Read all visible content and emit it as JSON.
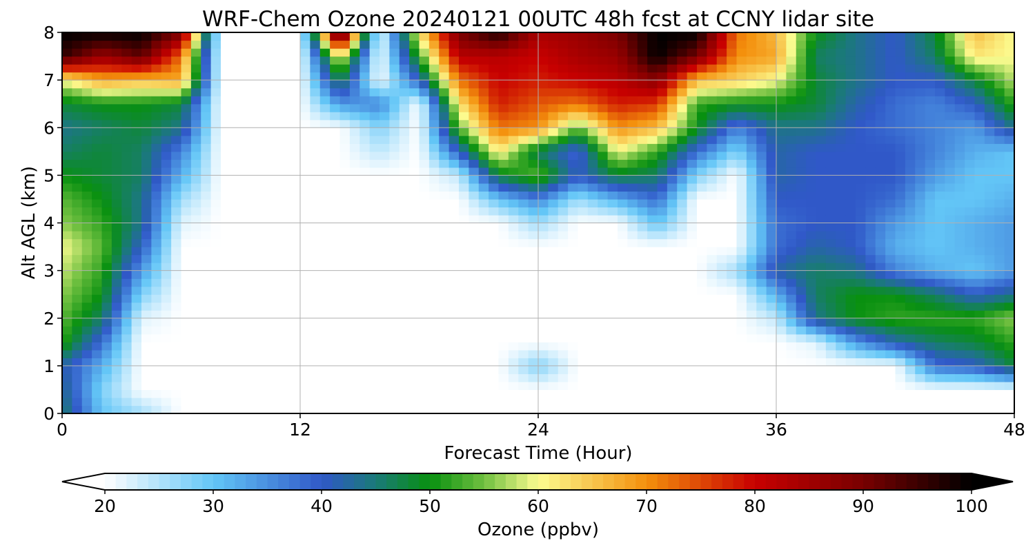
{
  "chart_data": {
    "type": "heatmap",
    "title": "WRF-Chem Ozone  20240121 00UTC 48h fcst at CCNY lidar site",
    "xlabel": "Forecast Time (Hour)",
    "ylabel": "Alt AGL (km)",
    "xlim": [
      0,
      48
    ],
    "ylim": [
      0,
      8
    ],
    "xticks": [
      0,
      12,
      24,
      36,
      48
    ],
    "yticks": [
      0,
      1,
      2,
      3,
      4,
      5,
      6,
      7,
      8
    ],
    "grid": true,
    "x_hours": [
      0,
      2,
      4,
      6,
      8,
      10,
      12,
      14,
      16,
      18,
      20,
      22,
      24,
      26,
      28,
      30,
      32,
      34,
      36,
      38,
      40,
      42,
      44,
      46,
      48
    ],
    "y_km": [
      0,
      0.5,
      1,
      1.5,
      2,
      2.5,
      3,
      3.5,
      4,
      4.5,
      5,
      5.5,
      6,
      6.5,
      7,
      7.5,
      8
    ],
    "z_ppbv": [
      [
        46,
        30,
        26,
        20,
        20,
        20,
        20,
        20,
        20,
        20,
        20,
        20,
        20,
        20,
        20,
        20,
        20,
        20,
        20,
        20,
        20,
        20,
        20,
        20,
        20
      ],
      [
        44,
        28,
        20,
        20,
        20,
        20,
        20,
        20,
        20,
        20,
        20,
        20,
        20,
        20,
        20,
        20,
        20,
        20,
        20,
        20,
        20,
        20,
        20,
        20,
        20
      ],
      [
        42,
        32,
        20,
        20,
        20,
        20,
        20,
        20,
        20,
        20,
        20,
        20,
        28,
        20,
        20,
        20,
        20,
        20,
        20,
        20,
        20,
        20,
        38,
        40,
        48
      ],
      [
        52,
        38,
        20,
        20,
        20,
        20,
        20,
        20,
        20,
        20,
        20,
        20,
        20,
        20,
        20,
        20,
        20,
        20,
        20,
        22,
        34,
        42,
        46,
        48,
        52
      ],
      [
        54,
        46,
        22,
        20,
        20,
        20,
        20,
        20,
        20,
        20,
        20,
        20,
        20,
        20,
        20,
        20,
        20,
        20,
        24,
        44,
        50,
        52,
        52,
        52,
        56
      ],
      [
        56,
        50,
        28,
        20,
        20,
        20,
        20,
        20,
        20,
        20,
        20,
        20,
        20,
        20,
        20,
        20,
        20,
        20,
        32,
        46,
        50,
        50,
        46,
        40,
        44
      ],
      [
        58,
        52,
        34,
        20,
        20,
        20,
        20,
        20,
        20,
        20,
        20,
        20,
        20,
        20,
        20,
        20,
        20,
        26,
        42,
        46,
        44,
        36,
        32,
        30,
        34
      ],
      [
        60,
        54,
        40,
        20,
        20,
        20,
        20,
        20,
        20,
        20,
        20,
        20,
        20,
        20,
        20,
        20,
        20,
        20,
        38,
        42,
        40,
        32,
        30,
        32,
        34
      ],
      [
        56,
        52,
        44,
        22,
        20,
        20,
        20,
        20,
        20,
        20,
        20,
        20,
        26,
        20,
        20,
        30,
        20,
        20,
        38,
        40,
        40,
        34,
        30,
        32,
        34
      ],
      [
        54,
        50,
        44,
        26,
        20,
        20,
        20,
        20,
        20,
        20,
        20,
        30,
        36,
        26,
        32,
        38,
        20,
        20,
        40,
        40,
        40,
        38,
        30,
        30,
        32
      ],
      [
        50,
        48,
        46,
        32,
        20,
        20,
        20,
        20,
        20,
        20,
        24,
        48,
        54,
        40,
        48,
        46,
        28,
        20,
        42,
        40,
        40,
        40,
        34,
        30,
        30
      ],
      [
        46,
        48,
        46,
        36,
        20,
        20,
        20,
        20,
        24,
        20,
        40,
        62,
        46,
        38,
        60,
        52,
        38,
        28,
        42,
        40,
        40,
        40,
        36,
        32,
        30
      ],
      [
        44,
        46,
        48,
        44,
        20,
        20,
        20,
        20,
        28,
        20,
        54,
        72,
        70,
        54,
        70,
        66,
        50,
        36,
        44,
        44,
        40,
        38,
        36,
        34,
        44
      ],
      [
        48,
        50,
        50,
        48,
        20,
        20,
        20,
        34,
        36,
        20,
        62,
        78,
        74,
        72,
        78,
        76,
        52,
        50,
        50,
        48,
        42,
        38,
        36,
        40,
        52
      ],
      [
        60,
        68,
        66,
        68,
        20,
        20,
        20,
        48,
        20,
        40,
        72,
        80,
        78,
        80,
        82,
        88,
        66,
        64,
        60,
        48,
        44,
        40,
        40,
        48,
        58
      ],
      [
        96,
        86,
        92,
        72,
        20,
        20,
        20,
        62,
        20,
        52,
        82,
        82,
        80,
        84,
        86,
        100,
        90,
        70,
        68,
        46,
        44,
        40,
        46,
        62,
        60
      ],
      [
        100,
        100,
        100,
        90,
        20,
        20,
        20,
        100,
        20,
        62,
        90,
        98,
        84,
        86,
        90,
        100,
        100,
        72,
        66,
        50,
        44,
        40,
        48,
        66,
        60
      ]
    ],
    "colorbar": {
      "label": "Ozone  (ppbv)",
      "ticks": [
        20,
        30,
        40,
        50,
        60,
        70,
        80,
        90,
        100
      ],
      "range": [
        20,
        100
      ],
      "extend": "both",
      "orientation": "horizontal"
    },
    "colorscale_stops": [
      {
        "v": 20,
        "c": "#ffffff"
      },
      {
        "v": 30,
        "c": "#63c6f7"
      },
      {
        "v": 40,
        "c": "#3058c8"
      },
      {
        "v": 45,
        "c": "#1a7a78"
      },
      {
        "v": 50,
        "c": "#089010"
      },
      {
        "v": 55,
        "c": "#70c040"
      },
      {
        "v": 60,
        "c": "#fcfc90"
      },
      {
        "v": 70,
        "c": "#f4900c"
      },
      {
        "v": 80,
        "c": "#c80000"
      },
      {
        "v": 90,
        "c": "#780000"
      },
      {
        "v": 100,
        "c": "#000000"
      }
    ]
  }
}
